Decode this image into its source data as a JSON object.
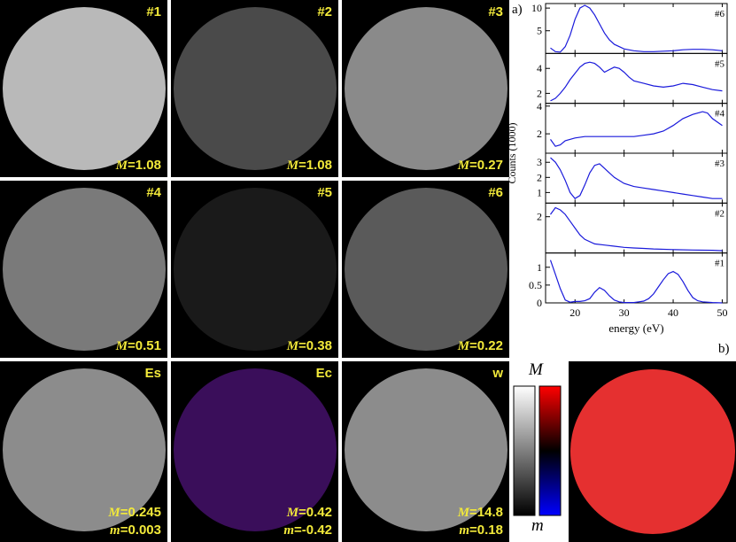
{
  "panels": [
    {
      "id": "p1",
      "label": "#1",
      "m_value": "1.08",
      "m_prefix": "M",
      "m_sep": "=",
      "lines": 1
    },
    {
      "id": "p2",
      "label": "#2",
      "m_value": "1.08",
      "m_prefix": "M",
      "m_sep": "=",
      "lines": 1
    },
    {
      "id": "p3",
      "label": "#3",
      "m_value": "0.27",
      "m_prefix": "M",
      "m_sep": "=",
      "lines": 1
    },
    {
      "id": "p4",
      "label": "#4",
      "m_value": "0.51",
      "m_prefix": "M",
      "m_sep": "=",
      "lines": 1
    },
    {
      "id": "p5",
      "label": "#5",
      "m_value": "0.38",
      "m_prefix": "M",
      "m_sep": "=",
      "lines": 1
    },
    {
      "id": "p6",
      "label": "#6",
      "m_value": "0.22",
      "m_prefix": "M",
      "m_sep": "=",
      "lines": 1
    },
    {
      "id": "pEs",
      "label": "Es",
      "m_value": "0.245",
      "m_prefix": "M",
      "m_sep": "=",
      "small_m_value": "0.003",
      "small_m_prefix": "m",
      "lines": 2
    },
    {
      "id": "pEc",
      "label": "Ec",
      "m_value": "0.42",
      "m_prefix": "M",
      "m_sep": "=",
      "small_m_value": "-0.42",
      "small_m_prefix": "m",
      "lines": 2
    },
    {
      "id": "pw",
      "label": "w",
      "m_value": "14.8",
      "m_prefix": "M",
      "m_sep": "=",
      "small_m_value": "0.18",
      "small_m_prefix": "m",
      "lines": 2
    }
  ],
  "figure_labels": {
    "a": "a)",
    "b": "b)"
  },
  "colorbar": {
    "top_label": "M",
    "bottom_label": "m",
    "colors": {
      "gray_top": "#ffffff",
      "gray_bottom": "#000000",
      "rb_top": "#ff0000",
      "rb_mid": "#000000",
      "rb_bottom": "#0000ff"
    }
  },
  "chart_data": {
    "type": "line",
    "ylabel": "Counts (1000)",
    "xlabel": "energy (eV)",
    "xlim": [
      14,
      51
    ],
    "x_ticks": [
      20,
      30,
      40,
      50
    ],
    "line_color": "#1a1adb",
    "subplots": [
      {
        "name": "#6",
        "ylim": [
          0,
          11
        ],
        "yticks": [
          5,
          10
        ],
        "x": [
          15,
          16,
          17,
          18,
          19,
          20,
          21,
          22,
          23,
          24,
          25,
          26,
          27,
          28,
          30,
          32,
          34,
          36,
          38,
          40,
          42,
          44,
          46,
          48,
          50
        ],
        "y": [
          1.2,
          0.4,
          0.3,
          1.5,
          4,
          7.5,
          10,
          10.6,
          10,
          8.5,
          6.5,
          4.5,
          3,
          2,
          1,
          0.6,
          0.4,
          0.4,
          0.5,
          0.6,
          0.8,
          0.9,
          0.9,
          0.8,
          0.6
        ]
      },
      {
        "name": "#5",
        "ylim": [
          1.2,
          5.2
        ],
        "yticks": [
          2,
          4
        ],
        "x": [
          15,
          16,
          17,
          18,
          19,
          20,
          21,
          22,
          23,
          24,
          25,
          26,
          27,
          28,
          29,
          30,
          31,
          32,
          34,
          36,
          38,
          40,
          42,
          44,
          46,
          48,
          50
        ],
        "y": [
          1.4,
          1.6,
          2.0,
          2.5,
          3.1,
          3.6,
          4.1,
          4.4,
          4.5,
          4.4,
          4.1,
          3.7,
          3.9,
          4.1,
          4.0,
          3.7,
          3.3,
          3.0,
          2.8,
          2.6,
          2.5,
          2.6,
          2.8,
          2.7,
          2.5,
          2.3,
          2.2
        ]
      },
      {
        "name": "#4",
        "ylim": [
          0.6,
          4.2
        ],
        "yticks": [
          2,
          4
        ],
        "x": [
          15,
          16,
          17,
          18,
          20,
          22,
          24,
          26,
          28,
          30,
          32,
          34,
          36,
          38,
          40,
          42,
          44,
          46,
          47,
          48,
          50
        ],
        "y": [
          1.6,
          1.1,
          1.2,
          1.5,
          1.7,
          1.8,
          1.8,
          1.8,
          1.8,
          1.8,
          1.8,
          1.9,
          2.0,
          2.2,
          2.6,
          3.1,
          3.4,
          3.6,
          3.5,
          3.1,
          2.6
        ]
      },
      {
        "name": "#3",
        "ylim": [
          0.3,
          3.6
        ],
        "yticks": [
          1,
          2,
          3
        ],
        "x": [
          15,
          16,
          17,
          18,
          19,
          20,
          21,
          22,
          23,
          24,
          25,
          26,
          27,
          28,
          30,
          32,
          34,
          36,
          38,
          40,
          42,
          44,
          46,
          48,
          50
        ],
        "y": [
          3.3,
          3.0,
          2.5,
          1.8,
          1.0,
          0.6,
          0.8,
          1.5,
          2.3,
          2.8,
          2.9,
          2.6,
          2.3,
          2.0,
          1.6,
          1.4,
          1.3,
          1.2,
          1.1,
          1.0,
          0.9,
          0.8,
          0.7,
          0.6,
          0.6
        ]
      },
      {
        "name": "#2",
        "ylim": [
          0.4,
          2.6
        ],
        "yticks": [
          2
        ],
        "x": [
          15,
          16,
          17,
          18,
          19,
          20,
          21,
          22,
          24,
          26,
          28,
          30,
          32,
          34,
          36,
          40,
          44,
          48,
          50
        ],
        "y": [
          2.1,
          2.4,
          2.3,
          2.1,
          1.8,
          1.5,
          1.2,
          1.0,
          0.8,
          0.75,
          0.7,
          0.65,
          0.62,
          0.6,
          0.58,
          0.55,
          0.53,
          0.52,
          0.5
        ]
      },
      {
        "name": "#1",
        "ylim": [
          0,
          1.4
        ],
        "yticks": [
          0,
          0.5,
          1
        ],
        "x": [
          15,
          16,
          17,
          18,
          19,
          20,
          21,
          22,
          23,
          24,
          25,
          26,
          27,
          28,
          29,
          30,
          31,
          32,
          33,
          34,
          35,
          36,
          37,
          38,
          39,
          40,
          41,
          42,
          43,
          44,
          45,
          46,
          48,
          50
        ],
        "y": [
          1.2,
          0.8,
          0.4,
          0.08,
          0.02,
          0.04,
          0.04,
          0.06,
          0.12,
          0.3,
          0.43,
          0.35,
          0.2,
          0.08,
          0.03,
          0.01,
          0.01,
          0.01,
          0.03,
          0.05,
          0.12,
          0.25,
          0.45,
          0.65,
          0.82,
          0.88,
          0.8,
          0.6,
          0.35,
          0.15,
          0.06,
          0.03,
          0.01,
          0.0
        ]
      }
    ]
  }
}
